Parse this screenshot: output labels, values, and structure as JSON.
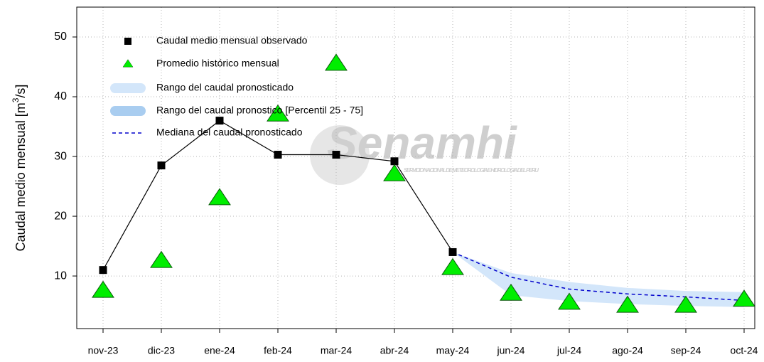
{
  "chart_data": {
    "type": "line",
    "y_label": "Caudal medio mensual  [m",
    "y_label_sup": "3",
    "y_label_end": "/s]",
    "watermark": "Senamhi",
    "watermark_sub": "SERVICIO NACIONAL DE METEOROLOGIA E HIDROLOGIA DEL PERU",
    "categories": [
      "nov-23",
      "dic-23",
      "ene-24",
      "feb-24",
      "mar-24",
      "abr-24",
      "may-24",
      "jun-24",
      "jul-24",
      "ago-24",
      "sep-24",
      "oct-24"
    ],
    "ylim": [
      1.2,
      55
    ],
    "yticks": [
      10,
      20,
      30,
      40,
      50
    ],
    "grid": true,
    "legend": "top-left",
    "series": [
      {
        "name": "Caudal medio mensual observado",
        "kind": "line-square",
        "color": "#000000",
        "values": [
          11,
          28.5,
          36,
          30.3,
          30.3,
          29.2,
          14,
          null,
          null,
          null,
          null,
          null
        ]
      },
      {
        "name": "Promedio histórico mensual",
        "kind": "triangle",
        "color": "#00ee00",
        "values": [
          7.5,
          12.5,
          23,
          37,
          45.5,
          27,
          11.3,
          7,
          5.5,
          5,
          5,
          6
        ]
      },
      {
        "name": "Rango del caudal pronosticado",
        "kind": "band",
        "color": "#d3e6fa",
        "low": [
          null,
          null,
          null,
          null,
          null,
          null,
          14,
          6.8,
          5.8,
          5.3,
          5,
          4.8
        ],
        "high": [
          null,
          null,
          null,
          null,
          null,
          null,
          14,
          10.5,
          9,
          8,
          7.5,
          7.3
        ]
      },
      {
        "name": "Rango del caudal pronostico [Percentil 25 - 75]",
        "kind": "band",
        "color": "#a9cdf0",
        "low": [
          null,
          null,
          null,
          null,
          null,
          null,
          null,
          null,
          null,
          null,
          null,
          null
        ],
        "high": [
          null,
          null,
          null,
          null,
          null,
          null,
          null,
          null,
          null,
          null,
          null,
          null
        ]
      },
      {
        "name": "Mediana del caudal pronosticado",
        "kind": "dashed",
        "color": "#0000cc",
        "values": [
          null,
          null,
          null,
          null,
          null,
          null,
          14,
          9.8,
          7.8,
          7,
          6.5,
          5.9
        ]
      }
    ]
  }
}
